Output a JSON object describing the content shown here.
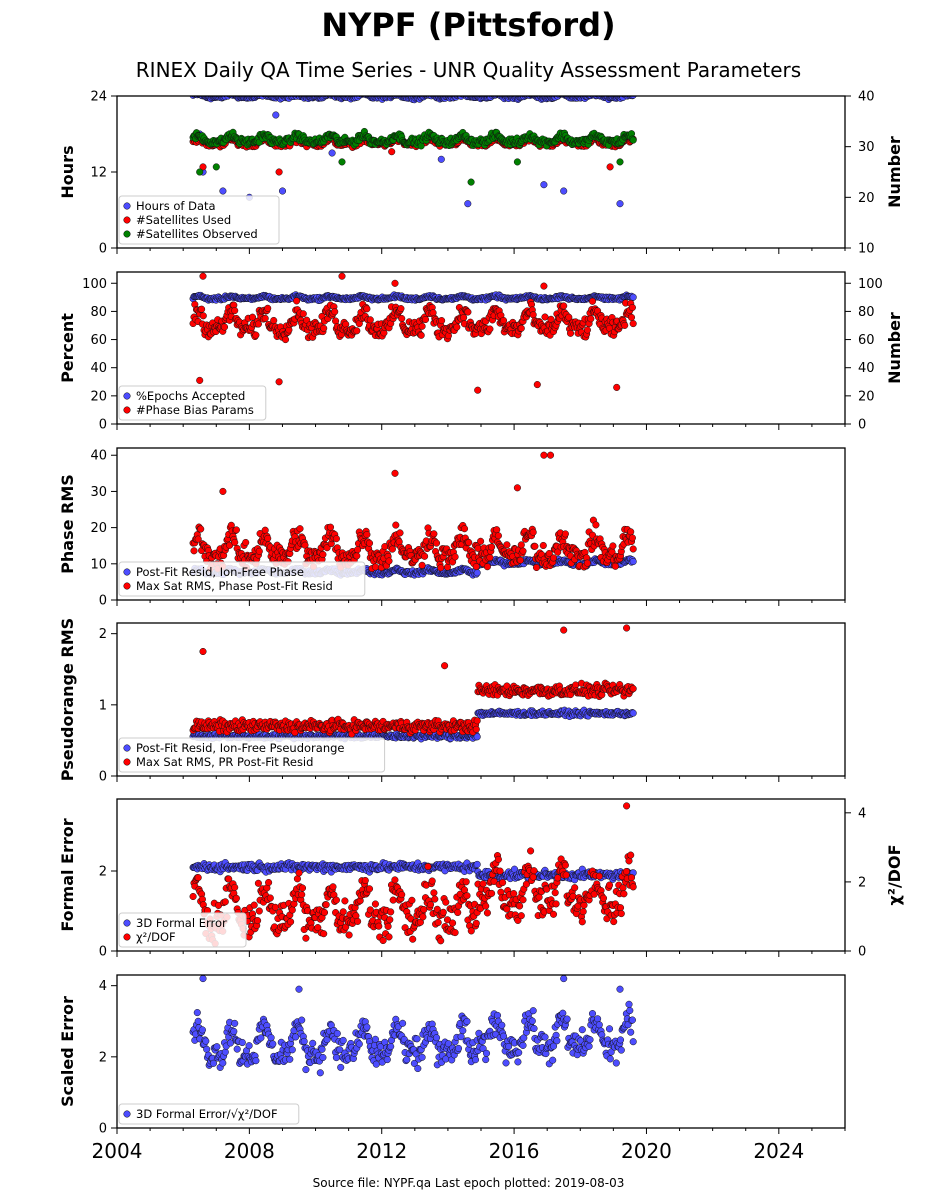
{
  "title": "NYPF (Pittsford)",
  "subtitle": "RINEX Daily QA Time Series - UNR Quality Assessment Parameters",
  "footer": "Source file: NYPF.qa Last epoch plotted: 2019-08-03",
  "colors": {
    "blue": "#4d4dff",
    "red": "#ff0000",
    "green": "#008000",
    "dark_blue": "#1a1a66",
    "black": "#000000"
  },
  "chart_data": [
    {
      "type": "scatter",
      "ylabel": "Hours",
      "ylabel_right": "Number",
      "xlim": [
        2004,
        2026
      ],
      "ylim": [
        0,
        24
      ],
      "ylim_right": [
        10,
        40
      ],
      "yticks": [
        "0",
        "12",
        "24"
      ],
      "yticks_right": [
        "10",
        "20",
        "30",
        "40"
      ],
      "legend": "lower-left",
      "series": [
        {
          "name": "Hours of Data",
          "axis": "left",
          "color": "#4d4dff",
          "x_range": [
            2006.3,
            2019.6
          ],
          "base": 23.8,
          "spread": 0.4,
          "outliers": [
            [
              2006.5,
              18
            ],
            [
              2006.6,
              12
            ],
            [
              2007.2,
              9
            ],
            [
              2008.0,
              8
            ],
            [
              2008.8,
              21
            ],
            [
              2009.0,
              9
            ],
            [
              2010.5,
              15
            ],
            [
              2013.8,
              14
            ],
            [
              2014.6,
              7
            ],
            [
              2016.9,
              10
            ],
            [
              2017.5,
              9
            ],
            [
              2019.2,
              7
            ]
          ]
        },
        {
          "name": "#Satellites Used",
          "axis": "right",
          "color": "#ff0000",
          "x_range": [
            2006.3,
            2019.6
          ],
          "base": 30.5,
          "spread": 0.8,
          "outliers": [
            [
              2006.6,
              26
            ],
            [
              2008.9,
              25
            ],
            [
              2012.3,
              29
            ],
            [
              2018.9,
              26
            ]
          ]
        },
        {
          "name": "#Satellites Observed",
          "axis": "right",
          "color": "#008000",
          "x_range": [
            2006.3,
            2019.6
          ],
          "base": 31.0,
          "spread": 1.0,
          "outliers": [
            [
              2006.5,
              25
            ],
            [
              2007.0,
              26
            ],
            [
              2010.8,
              27
            ],
            [
              2014.7,
              23
            ],
            [
              2016.1,
              27
            ],
            [
              2019.2,
              27
            ]
          ]
        }
      ]
    },
    {
      "type": "scatter",
      "ylabel": "Percent",
      "ylabel_right": "Number",
      "xlim": [
        2004,
        2026
      ],
      "ylim": [
        0,
        108
      ],
      "ylim_right": [
        0,
        108
      ],
      "yticks": [
        "0",
        "20",
        "40",
        "60",
        "80",
        "100"
      ],
      "yticks_right": [
        "0",
        "20",
        "40",
        "60",
        "80",
        "100"
      ],
      "legend": "lower-left",
      "series": [
        {
          "name": "%Epochs Accepted",
          "axis": "left",
          "color": "#4d4dff",
          "x_range": [
            2006.3,
            2019.6
          ],
          "base": 89,
          "spread": 1.5
        },
        {
          "name": "#Phase Bias Params",
          "axis": "right",
          "color": "#ff0000",
          "x_range": [
            2006.3,
            2019.6
          ],
          "base": 68,
          "spread": 10,
          "outliers": [
            [
              2006.6,
              105
            ],
            [
              2010.8,
              105
            ],
            [
              2012.4,
              100
            ],
            [
              2016.9,
              98
            ],
            [
              2006.5,
              31
            ],
            [
              2008.9,
              30
            ],
            [
              2014.9,
              24
            ],
            [
              2016.7,
              28
            ],
            [
              2019.1,
              26
            ]
          ]
        }
      ]
    },
    {
      "type": "scatter",
      "ylabel": "Phase RMS",
      "xlim": [
        2004,
        2026
      ],
      "ylim": [
        0,
        42
      ],
      "yticks": [
        "0",
        "10",
        "20",
        "30",
        "40"
      ],
      "legend": "lower-left",
      "series": [
        {
          "name": "Post-Fit Resid, Ion-Free Phase",
          "color": "#4d4dff",
          "x_range": [
            2006.3,
            2019.6
          ],
          "base": 7.5,
          "spread": 0.8,
          "step": [
            2014.9,
            10
          ]
        },
        {
          "name": "Max Sat RMS, Phase Post-Fit Resid",
          "color": "#ff0000",
          "x_range": [
            2006.3,
            2019.6
          ],
          "base": 12,
          "spread": 5,
          "outliers": [
            [
              2012.4,
              35
            ],
            [
              2016.9,
              40
            ],
            [
              2017.1,
              40
            ],
            [
              2007.2,
              30
            ],
            [
              2016.1,
              31
            ]
          ]
        }
      ]
    },
    {
      "type": "scatter",
      "ylabel": "Pseudorange RMS",
      "xlim": [
        2004,
        2026
      ],
      "ylim": [
        0,
        2.15
      ],
      "yticks": [
        "0",
        "1",
        "2"
      ],
      "legend": "lower-left",
      "series": [
        {
          "name": "Post-Fit Resid, Ion-Free Pseudorange",
          "color": "#4d4dff",
          "x_range": [
            2006.3,
            2019.6
          ],
          "base": 0.56,
          "spread": 0.05,
          "step": [
            2014.9,
            0.88
          ]
        },
        {
          "name": "Max Sat RMS, PR Post-Fit Resid",
          "color": "#ff0000",
          "x_range": [
            2006.3,
            2019.6
          ],
          "base": 0.7,
          "spread": 0.12,
          "step": [
            2014.9,
            1.2
          ],
          "outliers": [
            [
              2006.6,
              1.75
            ],
            [
              2013.9,
              1.55
            ],
            [
              2017.5,
              2.05
            ],
            [
              2019.4,
              2.08
            ]
          ]
        }
      ]
    },
    {
      "type": "scatter",
      "ylabel": "Formal Error",
      "ylabel_right": "χ²/DOF",
      "xlim": [
        2004,
        2026
      ],
      "ylim": [
        0,
        3.8
      ],
      "ylim_right": [
        0,
        4.4
      ],
      "yticks": [
        "0",
        "2"
      ],
      "yticks_right": [
        "0",
        "2",
        "4"
      ],
      "legend": "lower-left",
      "series": [
        {
          "name": "3D Formal Error",
          "axis": "left",
          "color": "#4d4dff",
          "x_range": [
            2006.3,
            2019.6
          ],
          "base": 2.1,
          "spread": 0.15,
          "step": [
            2014.9,
            1.9
          ]
        },
        {
          "name": "χ²/DOF",
          "axis": "right",
          "color": "#ff0000",
          "x_range": [
            2006.3,
            2019.6
          ],
          "base": 0.9,
          "spread": 0.8,
          "step": [
            2014.9,
            1.4
          ],
          "outliers": [
            [
              2019.4,
              4.2
            ]
          ]
        }
      ]
    },
    {
      "type": "scatter",
      "ylabel": "Scaled Error",
      "xlim": [
        2004,
        2026
      ],
      "ylim": [
        0,
        4.3
      ],
      "yticks": [
        "0",
        "2",
        "4"
      ],
      "xticks": [
        "2004",
        "2008",
        "2012",
        "2016",
        "2020",
        "2024"
      ],
      "legend": "lower-left",
      "series": [
        {
          "name": "3D Formal Error/√χ²/DOF",
          "color": "#4d4dff",
          "x_range": [
            2006.3,
            2019.6
          ],
          "base": 2.1,
          "spread": 0.6,
          "step": [
            2014.9,
            2.3
          ],
          "outliers": [
            [
              2006.6,
              4.2
            ],
            [
              2009.5,
              3.9
            ],
            [
              2017.5,
              4.2
            ],
            [
              2019.2,
              3.9
            ]
          ]
        }
      ]
    }
  ]
}
